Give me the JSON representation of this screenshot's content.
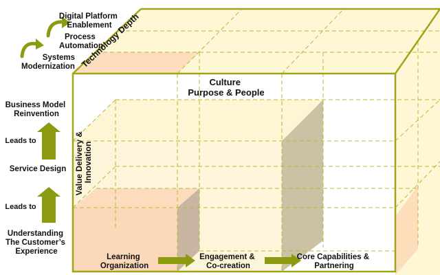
{
  "maturity": {
    "digital_platform": [
      "Digital Platform",
      "Enablement"
    ],
    "process_automation": [
      "Process",
      "Automation"
    ],
    "systems_modernization": [
      "Systems",
      "Modernization"
    ]
  },
  "left_steps": {
    "business_model": [
      "Business Model",
      "Reinvention"
    ],
    "leads_to_upper": "Leads to",
    "service_design": "Service Design",
    "leads_to_lower": "Leads to",
    "understanding": [
      "Understanding",
      "The Customer’s",
      "Experience"
    ]
  },
  "cube": {
    "technology_depth": "Technology Depth",
    "value_delivery": [
      "Value Delivery &",
      "Innovation"
    ],
    "culture": [
      "Culture",
      "Purpose & People"
    ]
  },
  "bottom_flow": {
    "learning": [
      "Learning",
      "Organization"
    ],
    "engagement": [
      "Engagement &",
      "Co-creation"
    ],
    "core_capabilities": [
      "Core Capabilities &",
      "Partnering"
    ]
  },
  "colors": {
    "olive": "#a3a31a",
    "arrow_green": "#8c9a10",
    "face_cream": "#fdf7d6",
    "peach": "#fbd9b8",
    "grey_slab": "#c9c2a4"
  }
}
